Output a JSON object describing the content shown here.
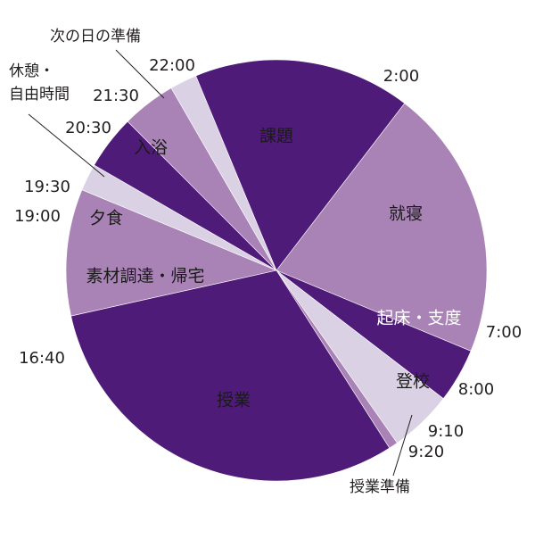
{
  "chart_data": {
    "type": "pie",
    "start_time": "2:00",
    "slices": [
      {
        "label": "就寝",
        "start": "2:00",
        "end": "7:00",
        "color": "#a983b5",
        "label_light": false
      },
      {
        "label": "起床・支度",
        "start": "7:00",
        "end": "8:00",
        "color": "#4f1b78",
        "label_light": true
      },
      {
        "label": "登校",
        "start": "8:00",
        "end": "9:10",
        "color": "#dad1e5",
        "label_light": false
      },
      {
        "label": "授業準備",
        "start": "9:10",
        "end": "9:20",
        "color": "#a983b5",
        "label_light": false
      },
      {
        "label": "授業",
        "start": "9:20",
        "end": "16:40",
        "color": "#4f1b78",
        "label_light": false
      },
      {
        "label": "素材調達・帰宅",
        "start": "16:40",
        "end": "19:00",
        "color": "#a983b5",
        "label_light": false
      },
      {
        "label": "夕食",
        "start": "19:00",
        "end": "19:30",
        "color": "#dad1e5",
        "label_light": false
      },
      {
        "label": "休憩・\n自由時間",
        "start": "19:30",
        "end": "20:30",
        "color": "#4f1b78",
        "label_light": false
      },
      {
        "label": "入浴",
        "start": "20:30",
        "end": "21:30",
        "color": "#a983b5",
        "label_light": false
      },
      {
        "label": "次の日の準備",
        "start": "21:30",
        "end": "22:00",
        "color": "#dad1e5",
        "label_light": false
      },
      {
        "label": "課題",
        "start": "22:00",
        "end": "2:00",
        "color": "#4f1b78",
        "label_light": false
      }
    ],
    "time_labels": [
      "2:00",
      "7:00",
      "8:00",
      "9:10",
      "9:20",
      "16:40",
      "19:00",
      "19:30",
      "20:30",
      "21:30",
      "22:00"
    ]
  }
}
